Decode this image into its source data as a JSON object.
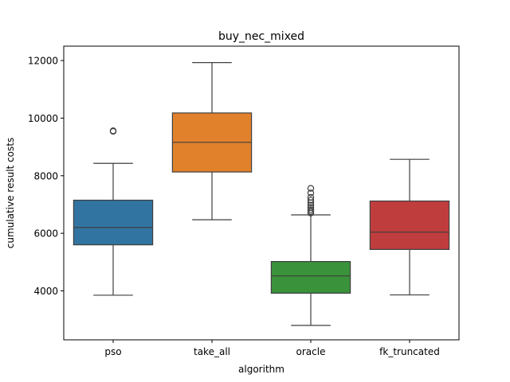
{
  "chart_data": {
    "type": "box",
    "title": "buy_nec_mixed",
    "xlabel": "algorithm",
    "ylabel": "cumulative result costs",
    "ylim": [
      2300,
      12500
    ],
    "yticks": [
      4000,
      6000,
      8000,
      10000,
      12000
    ],
    "grid": false,
    "categories": [
      "pso",
      "take_all",
      "oracle",
      "fk_truncated"
    ],
    "colors": [
      "#3274a1",
      "#e1812c",
      "#3a923a",
      "#c03d3e"
    ],
    "boxes": [
      {
        "category": "pso",
        "whisker_low": 3850,
        "q1": 5600,
        "median": 6200,
        "q3": 7150,
        "whisker_high": 8430,
        "outliers": [
          9540,
          9560
        ]
      },
      {
        "category": "take_all",
        "whisker_low": 6470,
        "q1": 8130,
        "median": 9160,
        "q3": 10180,
        "whisker_high": 11930,
        "outliers": []
      },
      {
        "category": "oracle",
        "whisker_low": 2800,
        "q1": 3920,
        "median": 4520,
        "q3": 5020,
        "whisker_high": 6640,
        "outliers": [
          6700,
          6760,
          6820,
          6900,
          6980,
          7060,
          7150,
          7250,
          7400,
          7560
        ]
      },
      {
        "category": "fk_truncated",
        "whisker_low": 3860,
        "q1": 5440,
        "median": 6040,
        "q3": 7120,
        "whisker_high": 8570,
        "outliers": []
      }
    ]
  }
}
